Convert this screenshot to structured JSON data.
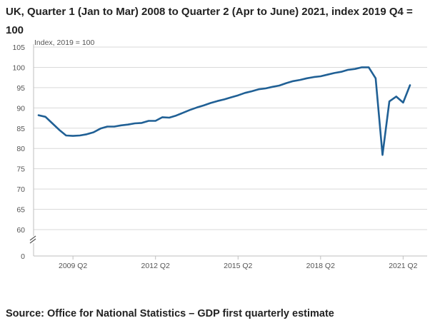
{
  "chart_data": {
    "type": "line",
    "title": "UK, Quarter 1 (Jan to Mar) 2008 to Quarter 2 (Apr to June) 2021, index 2019 Q4 = 100",
    "ylabel": "Index, 2019 = 100",
    "xlabel": "",
    "ylim": [
      60,
      105
    ],
    "y_ticks": [
      "105",
      "100",
      "95",
      "90",
      "85",
      "80",
      "75",
      "70",
      "65",
      "60"
    ],
    "y_zero_label": "0",
    "axis_break": true,
    "x_tick_labels": [
      "2009 Q2",
      "2012 Q2",
      "2015 Q2",
      "2018 Q2",
      "2021 Q2"
    ],
    "x_tick_indices": [
      5,
      17,
      29,
      41,
      53
    ],
    "series": [
      {
        "name": "GDP",
        "color": "#206095",
        "values": [
          88.2,
          87.8,
          86.2,
          84.6,
          83.2,
          83.1,
          83.2,
          83.5,
          84.0,
          84.9,
          85.4,
          85.4,
          85.7,
          85.9,
          86.2,
          86.3,
          86.8,
          86.8,
          87.7,
          87.6,
          88.1,
          88.8,
          89.5,
          90.1,
          90.6,
          91.2,
          91.7,
          92.1,
          92.6,
          93.1,
          93.7,
          94.1,
          94.6,
          94.8,
          95.2,
          95.5,
          96.1,
          96.6,
          96.9,
          97.3,
          97.6,
          97.8,
          98.2,
          98.6,
          98.9,
          99.4,
          99.6,
          100.0,
          100.0,
          97.3,
          78.4,
          91.6,
          92.8,
          91.3,
          95.6
        ]
      }
    ]
  },
  "source": "Source: Office for National Statistics – GDP first quarterly estimate"
}
